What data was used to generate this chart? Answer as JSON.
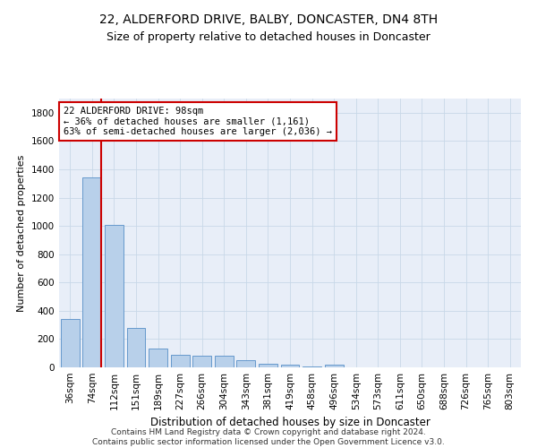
{
  "title": "22, ALDERFORD DRIVE, BALBY, DONCASTER, DN4 8TH",
  "subtitle": "Size of property relative to detached houses in Doncaster",
  "xlabel": "Distribution of detached houses by size in Doncaster",
  "ylabel": "Number of detached properties",
  "categories": [
    "36sqm",
    "74sqm",
    "112sqm",
    "151sqm",
    "189sqm",
    "227sqm",
    "266sqm",
    "304sqm",
    "343sqm",
    "381sqm",
    "419sqm",
    "458sqm",
    "496sqm",
    "534sqm",
    "573sqm",
    "611sqm",
    "650sqm",
    "688sqm",
    "726sqm",
    "765sqm",
    "803sqm"
  ],
  "values": [
    340,
    1340,
    1010,
    280,
    130,
    90,
    85,
    80,
    50,
    28,
    18,
    5,
    18,
    0,
    0,
    0,
    0,
    0,
    0,
    0,
    0
  ],
  "bar_color": "#b8d0ea",
  "bar_edge_color": "#6699cc",
  "vline_color": "#cc0000",
  "annotation_text": "22 ALDERFORD DRIVE: 98sqm\n← 36% of detached houses are smaller (1,161)\n63% of semi-detached houses are larger (2,036) →",
  "annotation_box_color": "#ffffff",
  "annotation_box_edge_color": "#cc0000",
  "ylim": [
    0,
    1900
  ],
  "yticks": [
    0,
    200,
    400,
    600,
    800,
    1000,
    1200,
    1400,
    1600,
    1800
  ],
  "grid_color": "#c8d8e8",
  "background_color": "#e8eef8",
  "footer": "Contains HM Land Registry data © Crown copyright and database right 2024.\nContains public sector information licensed under the Open Government Licence v3.0.",
  "title_fontsize": 10,
  "subtitle_fontsize": 9,
  "xlabel_fontsize": 8.5,
  "ylabel_fontsize": 8,
  "tick_fontsize": 7.5,
  "footer_fontsize": 6.5,
  "annotation_fontsize": 7.5
}
